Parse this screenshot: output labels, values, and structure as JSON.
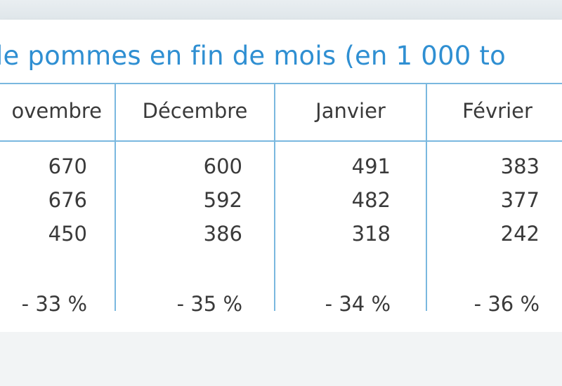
{
  "title": "le pommes en fin de mois (en 1 000 to",
  "columns": [
    {
      "header": "ovembre",
      "values": [
        "670",
        "676",
        "450"
      ],
      "variation": "- 33 %"
    },
    {
      "header": "Décembre",
      "values": [
        "600",
        "592",
        "386"
      ],
      "variation": "- 35 %"
    },
    {
      "header": "Janvier",
      "values": [
        "491",
        "482",
        "318"
      ],
      "variation": "- 34 %"
    },
    {
      "header": "Février",
      "values": [
        "383",
        "377",
        "242"
      ],
      "variation": "- 36 %"
    }
  ],
  "colors": {
    "title": "#2f8fd2",
    "rule": "#7ab8df",
    "text": "#3a3a3a"
  }
}
